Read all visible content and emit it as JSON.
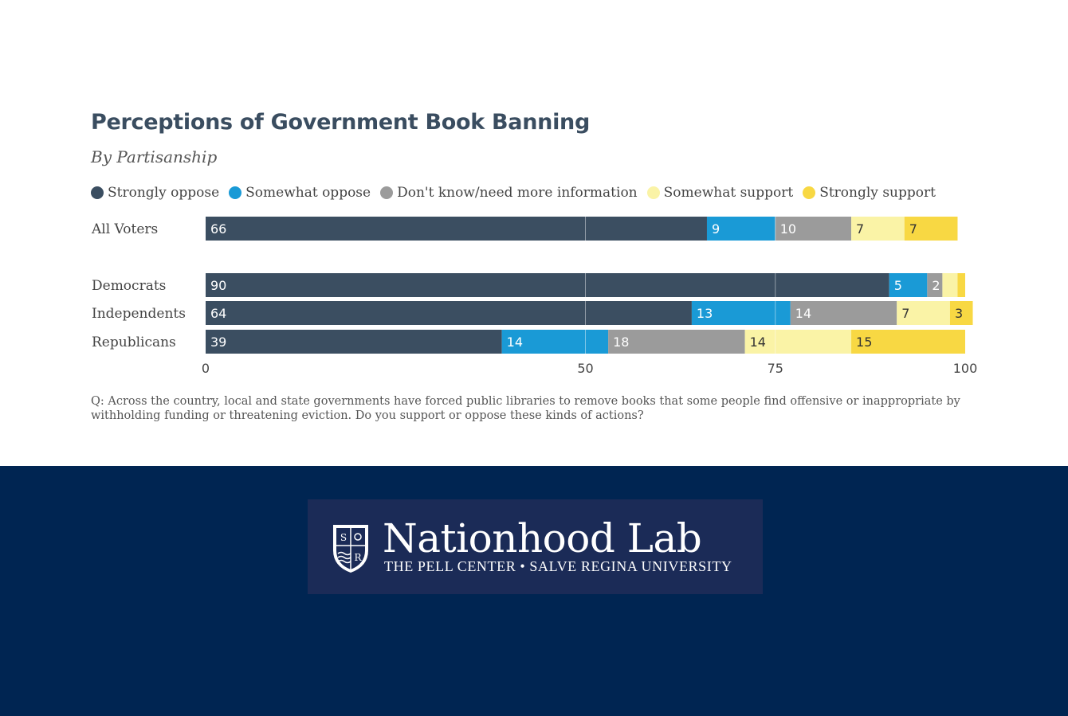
{
  "chart_data": {
    "type": "bar",
    "orientation": "horizontal-stacked",
    "title": "Perceptions of Government Book Banning",
    "subtitle": "By Partisanship",
    "categories": [
      "All Voters",
      "Democrats",
      "Independents",
      "Republicans"
    ],
    "series": [
      {
        "name": "Strongly oppose",
        "color": "#3b4e61",
        "values": [
          66,
          90,
          64,
          39
        ],
        "labels": [
          "66",
          "90",
          "64",
          "39"
        ]
      },
      {
        "name": "Somewhat oppose",
        "color": "#1a9ad6",
        "values": [
          9,
          5,
          13,
          14
        ],
        "labels": [
          "9",
          "5",
          "13",
          "14"
        ]
      },
      {
        "name": "Don't know/need more information",
        "color": "#9b9b9b",
        "values": [
          10,
          2,
          14,
          18
        ],
        "labels": [
          "10",
          "2",
          "14",
          "18"
        ]
      },
      {
        "name": "Somewhat support",
        "color": "#faf3a6",
        "values": [
          7,
          2,
          7,
          14
        ],
        "labels": [
          "7",
          "",
          "7",
          "14"
        ]
      },
      {
        "name": "Strongly support",
        "color": "#f8d843",
        "values": [
          7,
          1,
          3,
          15
        ],
        "labels": [
          "7",
          "",
          "3",
          "15"
        ]
      }
    ],
    "xlim": [
      0,
      100
    ],
    "xticks": [
      "0",
      "50",
      "75",
      "100"
    ],
    "xtick_values": [
      0,
      50,
      75,
      100
    ],
    "grid_values": [
      50,
      75
    ],
    "legend_position": "top-left",
    "note": "Q: Across the country, local and state governments have forced public libraries to remove books that some people find offensive or inappropriate by withholding funding or threatening eviction. Do you support or oppose these kinds of actions?"
  },
  "footer": {
    "logo_name": "Nationhood Lab",
    "logo_subtitle": "THE PELL CENTER • SALVE REGINA UNIVERSITY",
    "shield_letter_1": "S",
    "shield_letter_2": "R",
    "background": "#002552"
  }
}
